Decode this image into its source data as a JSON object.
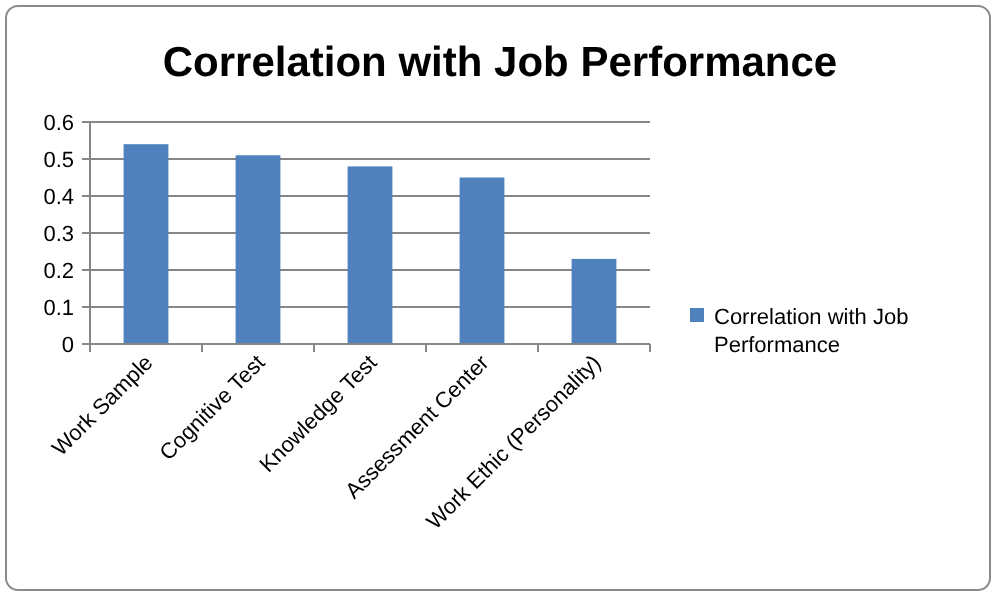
{
  "chart_data": {
    "type": "bar",
    "title": "Correlation with Job Performance",
    "categories": [
      "Work Sample",
      "Cognitive Test",
      "Knowledge Test",
      "Assessment Center",
      "Work Ethic (Personality)"
    ],
    "series": [
      {
        "name": "Correlation with Job Performance",
        "color": "#4f81bd",
        "values": [
          0.54,
          0.51,
          0.48,
          0.45,
          0.23
        ]
      }
    ],
    "ylim": [
      0,
      0.6
    ],
    "yticks": [
      0,
      0.1,
      0.2,
      0.3,
      0.4,
      0.5,
      0.6
    ],
    "grid": "y",
    "legend": "right"
  }
}
